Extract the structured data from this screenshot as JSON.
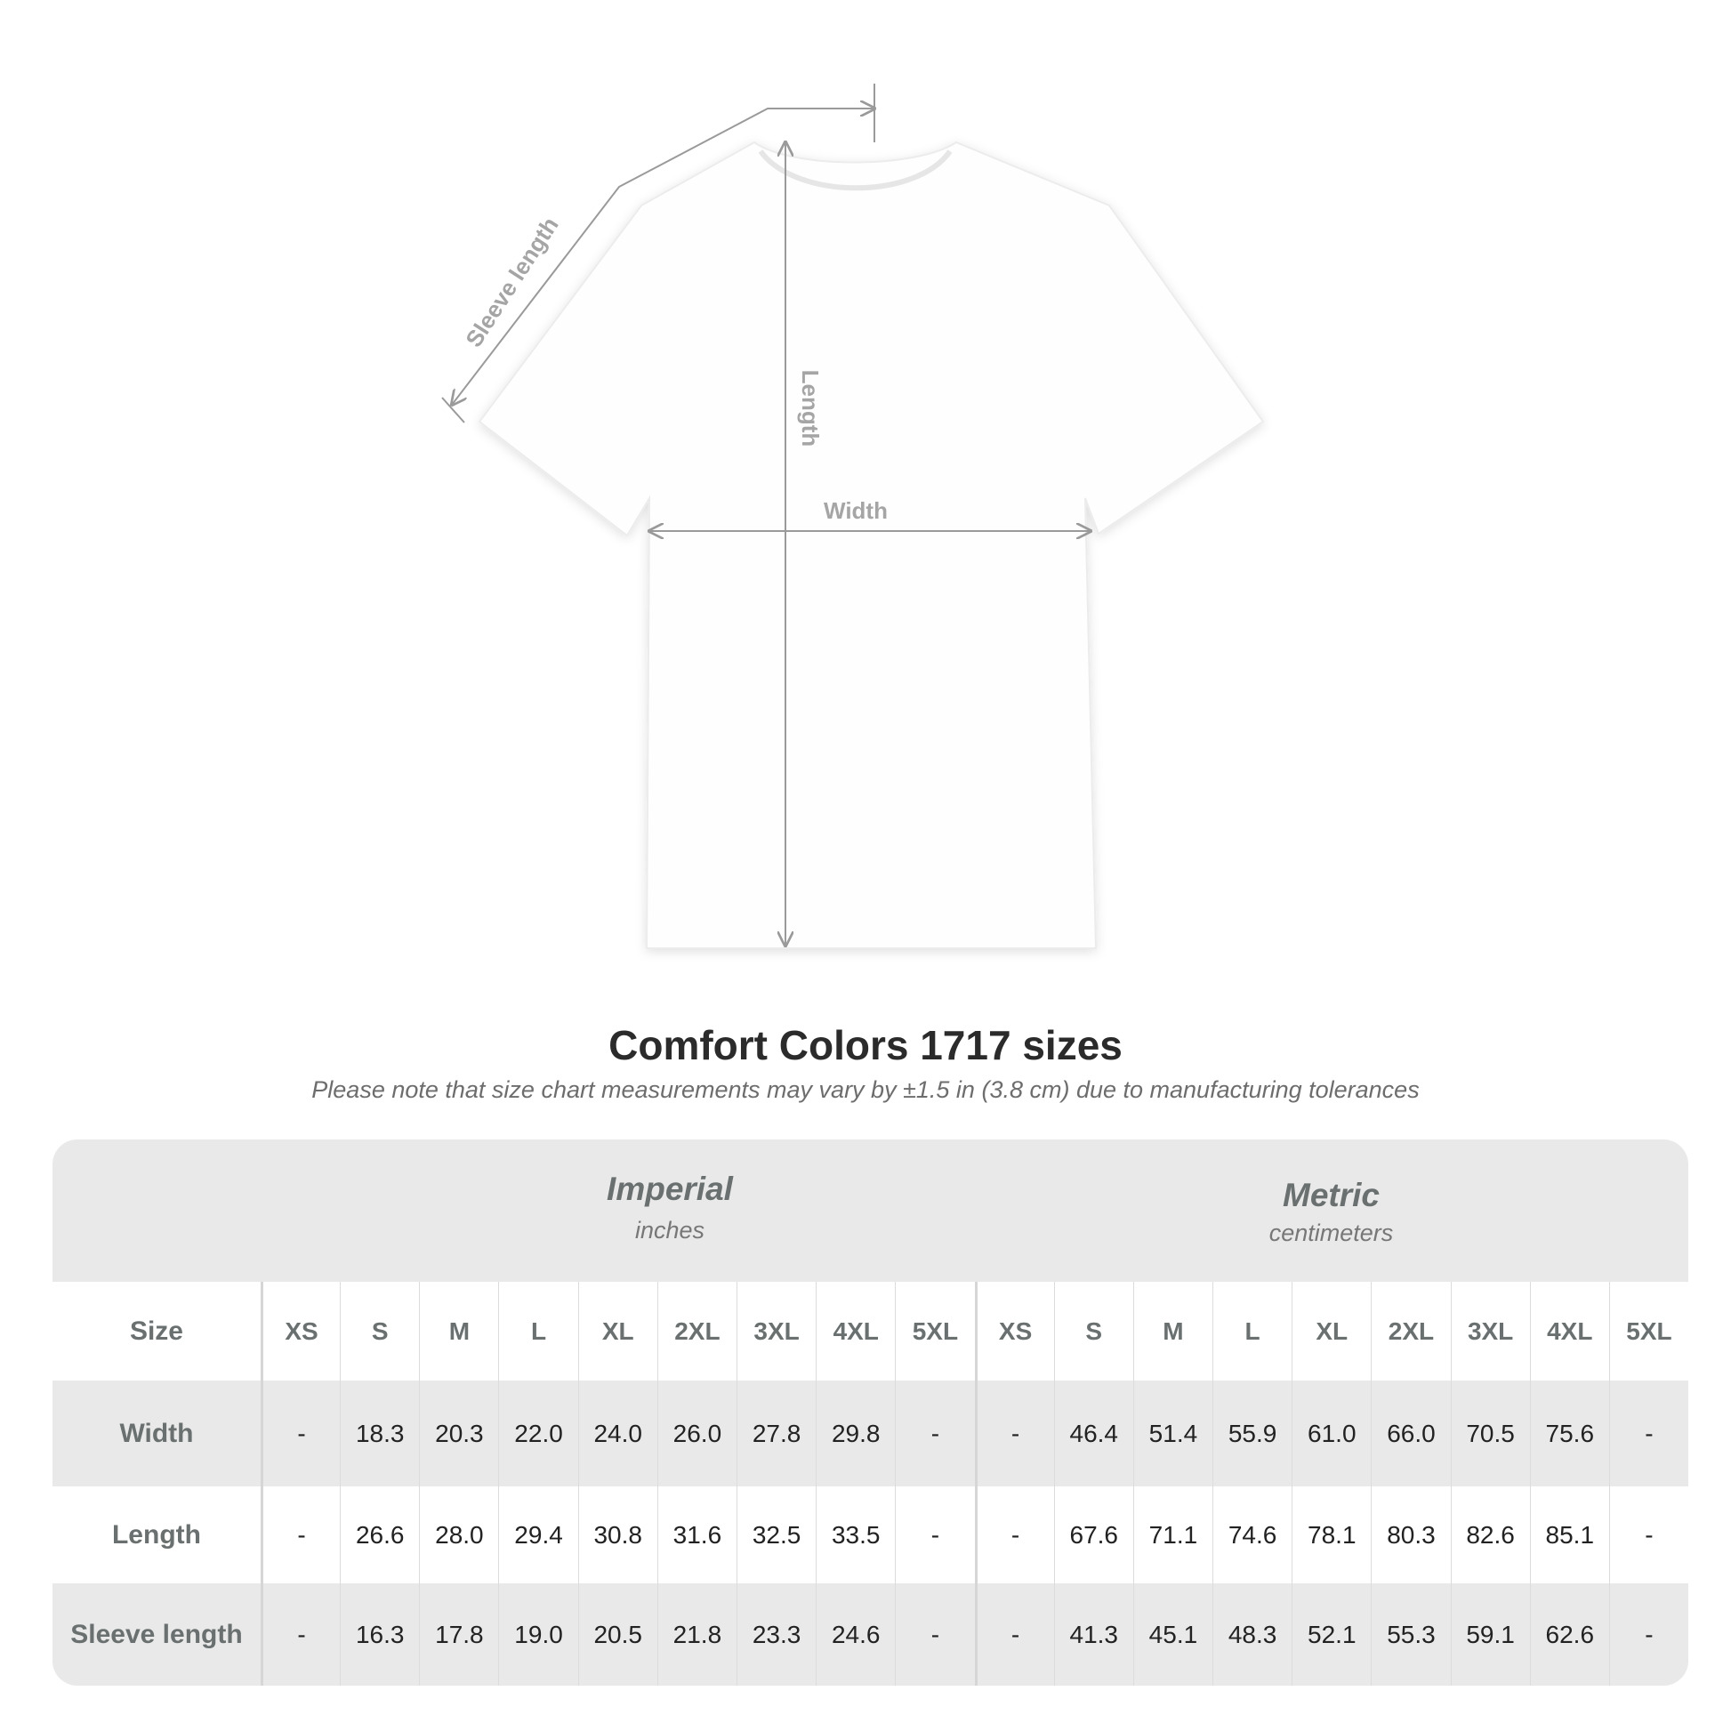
{
  "diagram": {
    "labels": {
      "sleeve": "Sleeve length",
      "length": "Length",
      "width": "Width"
    },
    "garment_color": "#ffffff",
    "line_color": "#9a9a9a"
  },
  "title": "Comfort Colors 1717 sizes",
  "note": "Please note that size chart measurements may vary by ±1.5 in (3.8 cm) due to manufacturing tolerances",
  "table": {
    "imperial": {
      "name": "Imperial",
      "unit": "inches"
    },
    "metric": {
      "name": "Metric",
      "unit": "centimeters"
    },
    "size_label": "Size",
    "sizes": [
      "XS",
      "S",
      "M",
      "L",
      "XL",
      "2XL",
      "3XL",
      "4XL",
      "5XL"
    ],
    "rows": [
      {
        "label": "Width",
        "imperial": [
          "-",
          "18.3",
          "20.3",
          "22.0",
          "24.0",
          "26.0",
          "27.8",
          "29.8",
          "-"
        ],
        "metric": [
          "-",
          "46.4",
          "51.4",
          "55.9",
          "61.0",
          "66.0",
          "70.5",
          "75.6",
          "-"
        ]
      },
      {
        "label": "Length",
        "imperial": [
          "-",
          "26.6",
          "28.0",
          "29.4",
          "30.8",
          "31.6",
          "32.5",
          "33.5",
          "-"
        ],
        "metric": [
          "-",
          "67.6",
          "71.1",
          "74.6",
          "78.1",
          "80.3",
          "82.6",
          "85.1",
          "-"
        ]
      },
      {
        "label": "Sleeve length",
        "imperial": [
          "-",
          "16.3",
          "17.8",
          "19.0",
          "20.5",
          "21.8",
          "23.3",
          "24.6",
          "-"
        ],
        "metric": [
          "-",
          "41.3",
          "45.1",
          "48.3",
          "52.1",
          "55.3",
          "59.1",
          "62.6",
          "-"
        ]
      }
    ]
  }
}
